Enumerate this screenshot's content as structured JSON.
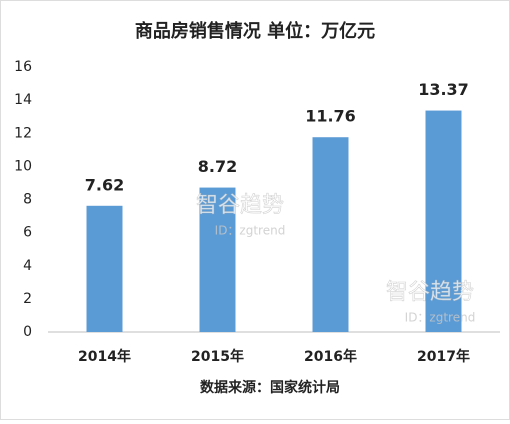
{
  "chart_data": {
    "type": "bar",
    "title": "商品房销售情况 单位：万亿元",
    "categories": [
      "2014年",
      "2015年",
      "2016年",
      "2017年"
    ],
    "values": [
      7.62,
      8.72,
      11.76,
      13.37
    ],
    "color": "#5b9bd5",
    "ylim": [
      0,
      16
    ],
    "yticks": [
      0,
      2,
      4,
      6,
      8,
      10,
      12,
      14,
      16
    ],
    "grid": false,
    "source": "数据来源：国家统计局",
    "watermarks": [
      "智谷趋势",
      "ID：zgtrend"
    ]
  }
}
